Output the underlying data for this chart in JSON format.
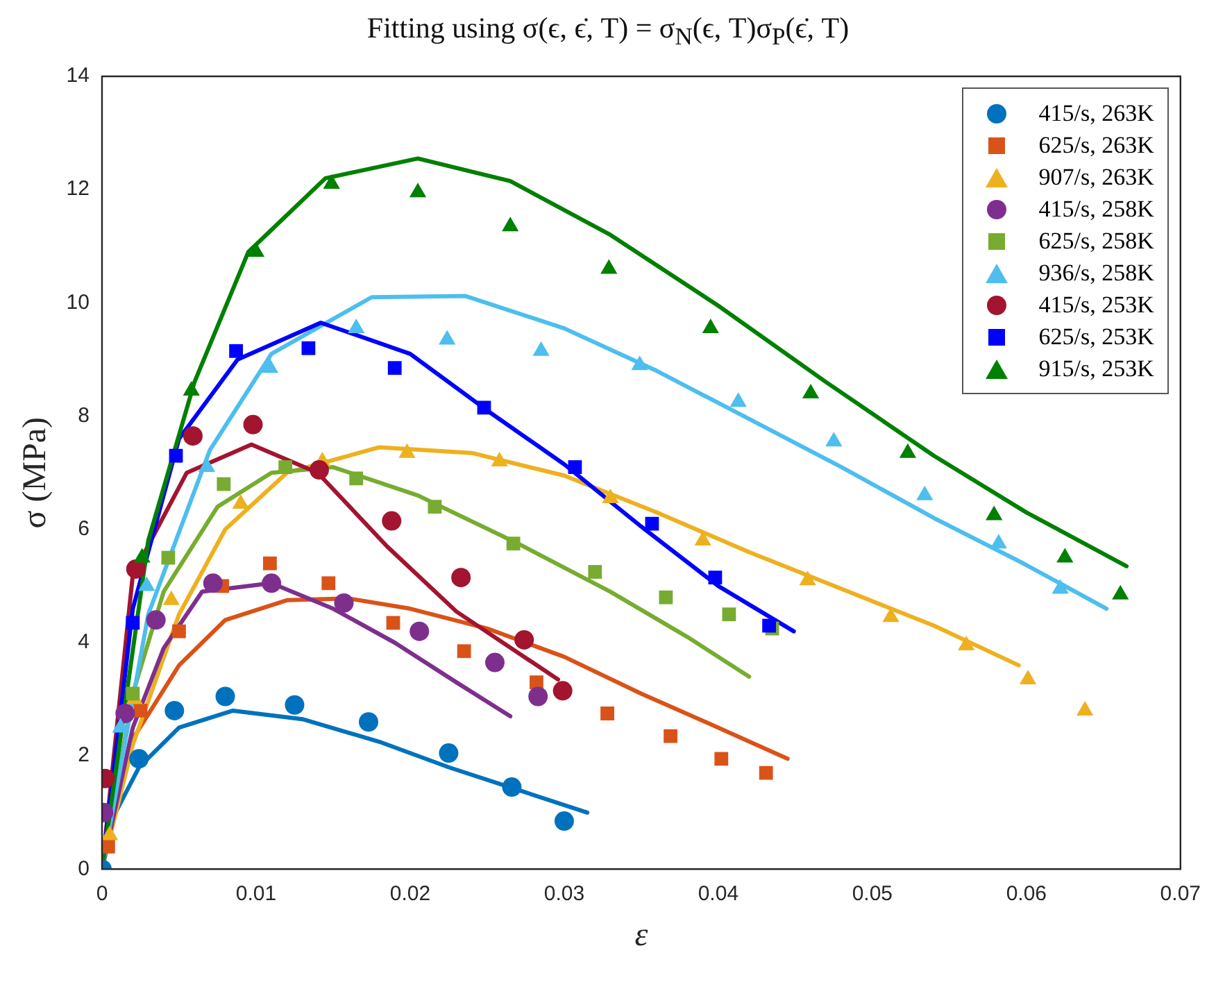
{
  "chart_data": {
    "type": "scatter",
    "title": "Fitting using σ(ϵ, ϵ̇, T) = σ$_{N}$(ϵ, T)σ$_{P}$(ϵ̇, T)",
    "xlabel": "ε",
    "ylabel": "σ (MPa)",
    "xlim": [
      0,
      0.07
    ],
    "xticks": [
      0,
      0.01,
      0.02,
      0.03,
      0.04,
      0.05,
      0.06,
      0.07
    ],
    "ylim": [
      0,
      14
    ],
    "yticks": [
      0,
      2,
      4,
      6,
      8,
      10,
      12,
      14
    ],
    "grid": false,
    "legend": "top right",
    "line_style": "solid",
    "series": [
      {
        "name": "415/s, 263K",
        "color": "#0072bd",
        "marker": "circle",
        "x": [
          0,
          0.0024,
          0.0047,
          0.008,
          0.0125,
          0.0173,
          0.0225,
          0.0266,
          0.03
        ],
        "values": [
          0,
          1.95,
          2.8,
          3.05,
          2.9,
          2.6,
          2.05,
          1.45,
          0.85
        ]
      },
      {
        "name": "625/s, 263K",
        "color": "#d95319",
        "marker": "square",
        "x": [
          0.0004,
          0.0025,
          0.005,
          0.0078,
          0.0109,
          0.0147,
          0.0189,
          0.0235,
          0.0282,
          0.0328,
          0.0369,
          0.0402,
          0.0431
        ],
        "values": [
          0.4,
          2.8,
          4.2,
          5.0,
          5.4,
          5.05,
          4.35,
          3.85,
          3.3,
          2.75,
          2.35,
          1.95,
          1.7
        ]
      },
      {
        "name": "907/s, 263K",
        "color": "#edb120",
        "marker": "triangle",
        "x": [
          0.0005,
          0.0021,
          0.0045,
          0.009,
          0.0143,
          0.0198,
          0.0258,
          0.033,
          0.039,
          0.0458,
          0.0512,
          0.0561,
          0.0601,
          0.0638
        ],
        "values": [
          0.6,
          3.0,
          4.75,
          6.45,
          7.2,
          7.35,
          7.2,
          6.55,
          5.8,
          5.1,
          4.45,
          3.95,
          3.35,
          2.8
        ]
      },
      {
        "name": "415/s, 258K",
        "color": "#7e2f8e",
        "marker": "circle",
        "x": [
          0.0001,
          0.0015,
          0.0035,
          0.0072,
          0.011,
          0.0157,
          0.0206,
          0.0255,
          0.0283
        ],
        "values": [
          1.0,
          2.75,
          4.4,
          5.05,
          5.05,
          4.7,
          4.2,
          3.65,
          3.05
        ]
      },
      {
        "name": "625/s, 258K",
        "color": "#77ac30",
        "marker": "square",
        "x": [
          0.002,
          0.0043,
          0.0079,
          0.0119,
          0.0165,
          0.0216,
          0.0267,
          0.032,
          0.0366,
          0.0407,
          0.0435
        ],
        "values": [
          3.1,
          5.5,
          6.8,
          7.1,
          6.9,
          6.4,
          5.75,
          5.25,
          4.8,
          4.5,
          4.25
        ]
      },
      {
        "name": "936/s, 258K",
        "color": "#4dbeee",
        "marker": "triangle",
        "x": [
          0.0012,
          0.0029,
          0.0068,
          0.0109,
          0.0165,
          0.0224,
          0.0285,
          0.0349,
          0.0413,
          0.0475,
          0.0534,
          0.0582,
          0.0622
        ],
        "values": [
          2.5,
          5.0,
          7.1,
          8.85,
          9.55,
          9.35,
          9.15,
          8.9,
          8.25,
          7.55,
          6.6,
          5.75,
          4.95
        ]
      },
      {
        "name": "415/s, 253K",
        "color": "#a2142f",
        "marker": "circle",
        "x": [
          0.0002,
          0.0022,
          0.0059,
          0.0098,
          0.0141,
          0.0188,
          0.0233,
          0.0274,
          0.0299
        ],
        "values": [
          1.6,
          5.3,
          7.65,
          7.85,
          7.05,
          6.15,
          5.15,
          4.05,
          3.15
        ]
      },
      {
        "name": "625/s, 253K",
        "color": "#0000ff",
        "marker": "square",
        "x": [
          0.002,
          0.0048,
          0.0087,
          0.0134,
          0.019,
          0.0248,
          0.0307,
          0.0357,
          0.0398,
          0.0433
        ],
        "values": [
          4.35,
          7.3,
          9.15,
          9.2,
          8.85,
          8.15,
          7.1,
          6.1,
          5.15,
          4.3
        ]
      },
      {
        "name": "915/s, 253K",
        "color": "#008000",
        "marker": "triangle",
        "x": [
          0.0026,
          0.0058,
          0.01,
          0.0149,
          0.0205,
          0.0265,
          0.0329,
          0.0395,
          0.046,
          0.0523,
          0.0579,
          0.0625,
          0.0661
        ],
        "values": [
          5.5,
          8.45,
          10.9,
          12.1,
          11.95,
          11.35,
          10.6,
          9.55,
          8.4,
          7.35,
          6.25,
          5.5,
          4.85
        ]
      },
      {
        "type": "line",
        "color": "#0072bd",
        "marker": "none",
        "x": [
          0,
          0.0005,
          0.0024,
          0.005,
          0.0085,
          0.013,
          0.018,
          0.0225,
          0.027,
          0.0315
        ],
        "values": [
          0,
          0.8,
          1.8,
          2.5,
          2.8,
          2.65,
          2.25,
          1.8,
          1.4,
          1.0
        ]
      },
      {
        "type": "line",
        "color": "#d95319",
        "marker": "none",
        "x": [
          0,
          0.002,
          0.005,
          0.008,
          0.012,
          0.016,
          0.02,
          0.025,
          0.03,
          0.035,
          0.04,
          0.0445
        ],
        "values": [
          0,
          2.3,
          3.6,
          4.4,
          4.75,
          4.78,
          4.6,
          4.25,
          3.75,
          3.1,
          2.5,
          1.95
        ]
      },
      {
        "type": "line",
        "color": "#edb120",
        "marker": "none",
        "x": [
          0,
          0.002,
          0.005,
          0.008,
          0.012,
          0.018,
          0.024,
          0.03,
          0.036,
          0.042,
          0.048,
          0.054,
          0.0595
        ],
        "values": [
          0,
          2.2,
          4.5,
          6.0,
          7.0,
          7.45,
          7.35,
          6.95,
          6.3,
          5.6,
          4.95,
          4.3,
          3.6
        ]
      },
      {
        "type": "line",
        "color": "#7e2f8e",
        "marker": "none",
        "x": [
          0,
          0.002,
          0.004,
          0.0065,
          0.011,
          0.015,
          0.019,
          0.023,
          0.0265
        ],
        "values": [
          0,
          2.5,
          3.9,
          4.9,
          5.05,
          4.6,
          4.0,
          3.3,
          2.7
        ]
      },
      {
        "type": "line",
        "color": "#77ac30",
        "marker": "none",
        "x": [
          0,
          0.002,
          0.004,
          0.0075,
          0.011,
          0.015,
          0.0205,
          0.027,
          0.033,
          0.038,
          0.042
        ],
        "values": [
          0,
          3.1,
          4.9,
          6.4,
          7.0,
          7.1,
          6.6,
          5.75,
          4.9,
          4.1,
          3.4
        ]
      },
      {
        "type": "line",
        "color": "#4dbeee",
        "marker": "none",
        "x": [
          0,
          0.003,
          0.007,
          0.011,
          0.0175,
          0.0236,
          0.03,
          0.036,
          0.042,
          0.048,
          0.054,
          0.0598,
          0.0652
        ],
        "values": [
          0,
          4.5,
          7.4,
          9.1,
          10.1,
          10.12,
          9.55,
          8.8,
          7.95,
          7.1,
          6.2,
          5.4,
          4.6
        ]
      },
      {
        "type": "line",
        "color": "#a2142f",
        "marker": "none",
        "x": [
          0,
          0.002,
          0.0055,
          0.0097,
          0.014,
          0.0185,
          0.023,
          0.0296
        ],
        "values": [
          0,
          5.2,
          7.0,
          7.5,
          7.0,
          5.7,
          4.55,
          3.35
        ]
      },
      {
        "type": "line",
        "color": "#0000ff",
        "marker": "none",
        "x": [
          0,
          0.002,
          0.005,
          0.0088,
          0.0142,
          0.02,
          0.025,
          0.03,
          0.035,
          0.04,
          0.0449
        ],
        "values": [
          0,
          4.6,
          7.6,
          9.0,
          9.65,
          9.1,
          8.1,
          7.15,
          6.05,
          5.0,
          4.2
        ]
      },
      {
        "type": "line",
        "color": "#008000",
        "marker": "none",
        "x": [
          0,
          0.003,
          0.006,
          0.0095,
          0.0145,
          0.0205,
          0.0265,
          0.033,
          0.04,
          0.047,
          0.054,
          0.06,
          0.0665
        ],
        "values": [
          0,
          5.8,
          8.6,
          10.9,
          12.2,
          12.55,
          12.15,
          11.2,
          9.95,
          8.6,
          7.3,
          6.3,
          5.35
        ]
      }
    ]
  }
}
